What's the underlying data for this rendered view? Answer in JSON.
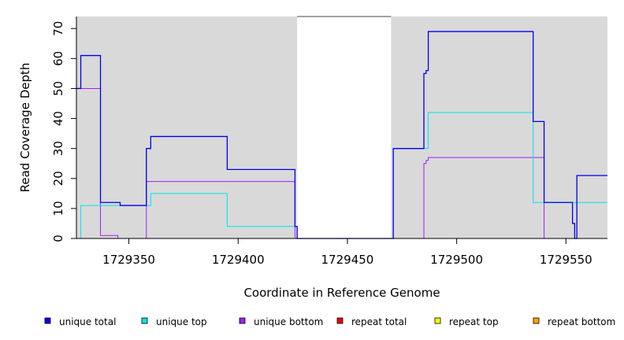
{
  "chart_data": {
    "type": "line",
    "step": true,
    "title": "",
    "xlabel": "Coordinate in Reference Genome",
    "ylabel": "Read Coverage Depth",
    "xlim": [
      1729326,
      1729569
    ],
    "ylim": [
      0,
      74
    ],
    "xticks": [
      1729350,
      1729400,
      1729450,
      1729500,
      1729550
    ],
    "yticks": [
      0,
      10,
      20,
      30,
      40,
      50,
      60,
      70
    ],
    "background": "#d9d9d9",
    "uncovered_region": [
      1729427,
      1729470
    ],
    "uncovered_color": "#ffffff",
    "legend_position": "bottom",
    "series": [
      {
        "name": "unique total",
        "color": "#0000ee",
        "x": [
          1729326,
          1729327,
          1729328,
          1729337,
          1729345,
          1729346,
          1729358,
          1729360,
          1729394,
          1729395,
          1729426,
          1729427,
          1729470,
          1729471,
          1729485,
          1729486,
          1729487,
          1729534,
          1729535,
          1729540,
          1729553,
          1729554,
          1729555,
          1729569
        ],
        "y": [
          50,
          50,
          61,
          12,
          12,
          11,
          30,
          34,
          34,
          23,
          4,
          0,
          0,
          30,
          55,
          56,
          69,
          69,
          39,
          12,
          5,
          0,
          21,
          21
        ]
      },
      {
        "name": "unique top",
        "color": "#00e5e5",
        "x": [
          1729326,
          1729327,
          1729328,
          1729358,
          1729360,
          1729394,
          1729395,
          1729426,
          1729427,
          1729470,
          1729471,
          1729486,
          1729487,
          1729534,
          1729535,
          1729540,
          1729569
        ],
        "y": [
          0,
          0,
          11,
          11,
          15,
          15,
          4,
          4,
          0,
          0,
          30,
          30,
          42,
          42,
          12,
          12,
          12
        ]
      },
      {
        "name": "unique bottom",
        "color": "#a020f0",
        "x": [
          1729326,
          1729337,
          1729345,
          1729358,
          1729426,
          1729485,
          1729486,
          1729487,
          1729540,
          1729569
        ],
        "y": [
          50,
          1,
          0,
          19,
          0,
          25,
          26,
          27,
          0,
          0
        ]
      },
      {
        "name": "repeat total",
        "color": "#ee0000",
        "x": [
          1729326,
          1729569
        ],
        "y": [
          0,
          0
        ]
      },
      {
        "name": "repeat top",
        "color": "#ffff00",
        "x": [
          1729326,
          1729569
        ],
        "y": [
          0,
          0
        ]
      },
      {
        "name": "repeat bottom",
        "color": "#ffa500",
        "x": [
          1729326,
          1729569
        ],
        "y": [
          0,
          0
        ]
      }
    ]
  }
}
